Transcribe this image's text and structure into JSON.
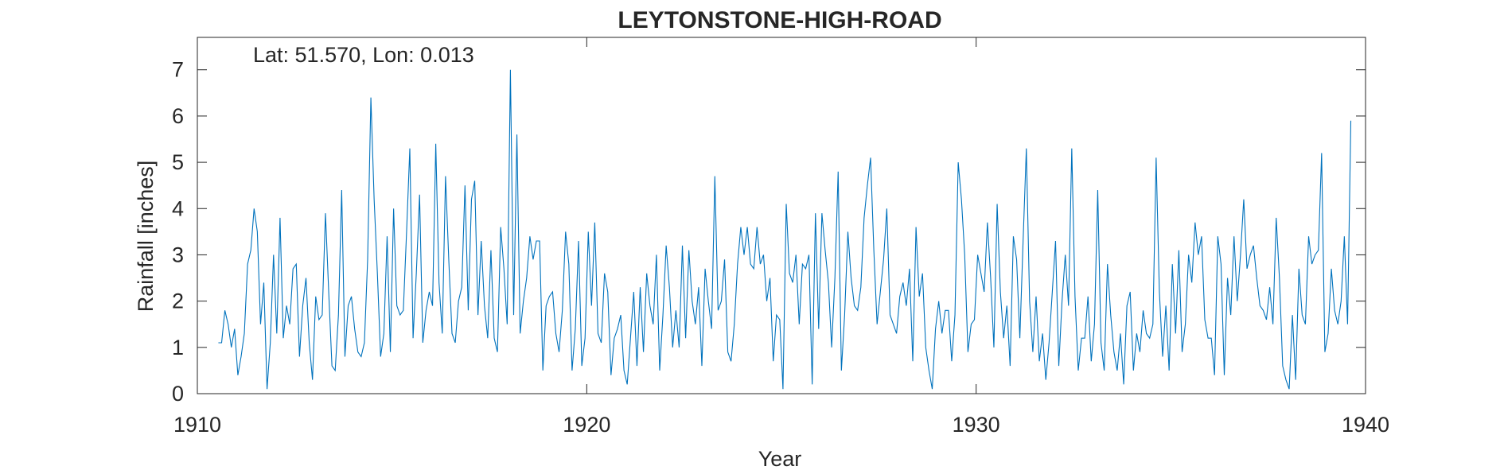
{
  "chart_data": {
    "type": "line",
    "title": "LEYTONSTONE-HIGH-ROAD",
    "annotation": "Lat: 51.570, Lon: 0.013",
    "xlabel": "Year",
    "ylabel": "Rainfall [inches]",
    "xlim": [
      1910,
      1940
    ],
    "ylim": [
      0,
      7.7
    ],
    "xticks": [
      1910,
      1920,
      1930,
      1940
    ],
    "yticks": [
      0,
      1,
      2,
      3,
      4,
      5,
      6,
      7
    ],
    "grid": false,
    "legend": "none",
    "line_color": "#0072BD",
    "series": [
      {
        "x_start": 1910.54,
        "x_step": 0.08333,
        "values": [
          1.1,
          1.1,
          1.8,
          1.5,
          1.0,
          1.4,
          0.4,
          0.8,
          1.3,
          2.8,
          3.1,
          4.0,
          3.5,
          1.5,
          2.4,
          0.1,
          1.1,
          3.0,
          1.3,
          3.8,
          1.2,
          1.9,
          1.5,
          2.7,
          2.8,
          0.8,
          1.9,
          2.5,
          1.1,
          0.3,
          2.1,
          1.6,
          1.7,
          3.9,
          2.2,
          0.6,
          0.5,
          1.7,
          4.4,
          0.8,
          1.9,
          2.1,
          1.4,
          0.9,
          0.8,
          1.1,
          2.9,
          6.4,
          4.2,
          2.6,
          0.8,
          1.3,
          3.4,
          0.9,
          4.0,
          1.9,
          1.7,
          1.8,
          3.5,
          5.3,
          1.2,
          2.6,
          4.3,
          1.1,
          1.8,
          2.2,
          1.9,
          5.4,
          2.4,
          1.3,
          4.7,
          2.9,
          1.3,
          1.1,
          2.0,
          2.3,
          4.5,
          1.8,
          4.2,
          4.6,
          1.7,
          3.3,
          1.9,
          1.2,
          3.1,
          1.2,
          0.9,
          3.6,
          2.7,
          1.5,
          7.0,
          1.7,
          5.6,
          1.3,
          2.0,
          2.5,
          3.4,
          2.9,
          3.3,
          3.3,
          0.5,
          1.9,
          2.1,
          2.2,
          1.3,
          0.9,
          1.8,
          3.5,
          2.8,
          0.5,
          1.4,
          3.3,
          0.6,
          1.2,
          3.5,
          1.9,
          3.7,
          1.3,
          1.1,
          2.6,
          2.2,
          0.4,
          1.2,
          1.4,
          1.7,
          0.5,
          0.2,
          1.2,
          2.2,
          0.6,
          2.3,
          0.9,
          2.6,
          1.9,
          1.5,
          3.0,
          0.5,
          1.7,
          3.2,
          2.3,
          1.0,
          1.8,
          1.0,
          3.2,
          1.2,
          3.1,
          2.0,
          1.5,
          2.3,
          0.6,
          2.7,
          2.0,
          1.4,
          4.7,
          1.8,
          2.0,
          2.9,
          0.9,
          0.7,
          1.5,
          2.8,
          3.6,
          3.0,
          3.6,
          2.8,
          2.7,
          3.6,
          2.8,
          3.0,
          2.0,
          2.5,
          0.7,
          1.7,
          1.6,
          0.1,
          4.1,
          2.6,
          2.4,
          3.0,
          1.5,
          2.8,
          2.7,
          3.0,
          0.2,
          3.9,
          1.4,
          3.9,
          3.1,
          2.4,
          1.0,
          2.5,
          4.8,
          0.5,
          1.7,
          3.5,
          2.5,
          1.9,
          1.8,
          2.3,
          3.8,
          4.5,
          5.1,
          3.1,
          1.5,
          2.2,
          2.9,
          4.0,
          1.7,
          1.5,
          1.3,
          2.1,
          2.4,
          1.9,
          2.7,
          0.7,
          3.6,
          2.1,
          2.6,
          1.0,
          0.5,
          0.1,
          1.4,
          2.0,
          1.3,
          1.8,
          1.8,
          0.7,
          1.7,
          5.0,
          4.2,
          3.0,
          0.9,
          1.5,
          1.6,
          3.0,
          2.6,
          2.2,
          3.7,
          2.5,
          1.0,
          4.1,
          2.2,
          1.2,
          1.9,
          0.6,
          3.4,
          2.9,
          1.2,
          3.3,
          5.3,
          2.0,
          0.9,
          2.1,
          0.7,
          1.3,
          0.3,
          1.1,
          2.2,
          3.3,
          0.6,
          2.0,
          3.0,
          1.9,
          5.3,
          2.1,
          0.5,
          1.2,
          1.2,
          2.1,
          0.7,
          1.5,
          4.4,
          1.1,
          0.5,
          2.8,
          1.7,
          0.9,
          0.5,
          1.3,
          0.2,
          1.9,
          2.2,
          0.5,
          1.3,
          0.9,
          1.8,
          1.3,
          1.2,
          1.5,
          5.1,
          2.2,
          0.8,
          1.9,
          0.5,
          2.8,
          1.3,
          3.1,
          0.9,
          1.5,
          3.0,
          2.4,
          3.7,
          3.0,
          3.4,
          1.6,
          1.2,
          1.2,
          0.4,
          3.4,
          2.8,
          0.4,
          2.5,
          1.7,
          3.4,
          2.0,
          3.0,
          4.2,
          2.7,
          3.0,
          3.2,
          2.5,
          1.9,
          1.8,
          1.6,
          2.3,
          1.5,
          3.8,
          2.5,
          0.6,
          0.3,
          0.1,
          1.7,
          0.3,
          2.7,
          1.7,
          1.5,
          3.4,
          2.8,
          3.0,
          3.1,
          5.2,
          0.9,
          1.3,
          2.7,
          1.8,
          1.5,
          2.0,
          3.4,
          1.5,
          5.9
        ]
      }
    ]
  }
}
